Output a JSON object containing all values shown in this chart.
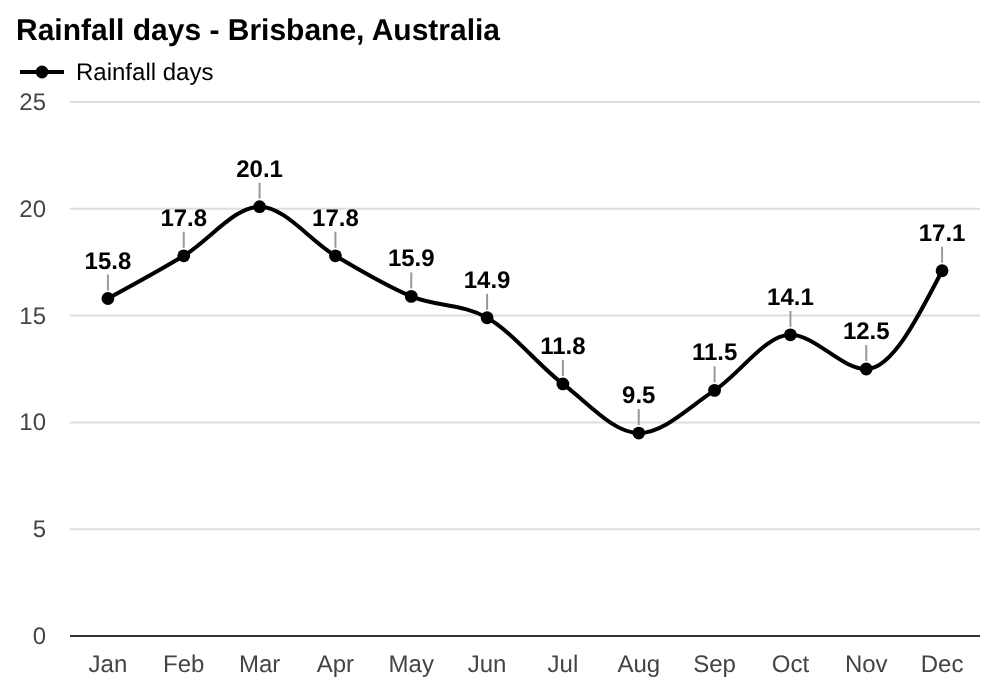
{
  "chart_data": {
    "type": "line",
    "title": "Rainfall days - Brisbane, Australia",
    "categories": [
      "Jan",
      "Feb",
      "Mar",
      "Apr",
      "May",
      "Jun",
      "Jul",
      "Aug",
      "Sep",
      "Oct",
      "Nov",
      "Dec"
    ],
    "series": [
      {
        "name": "Rainfall days",
        "color": "#000000",
        "values": [
          15.8,
          17.8,
          20.1,
          17.8,
          15.9,
          14.9,
          11.8,
          9.5,
          11.5,
          14.1,
          12.5,
          17.1
        ]
      }
    ],
    "ylim": [
      0,
      25
    ],
    "yticks": [
      0,
      5,
      10,
      15,
      20,
      25
    ],
    "grid": "y",
    "legend": "top left",
    "marker": "circle",
    "line_style": "solid",
    "data_labels": true
  }
}
